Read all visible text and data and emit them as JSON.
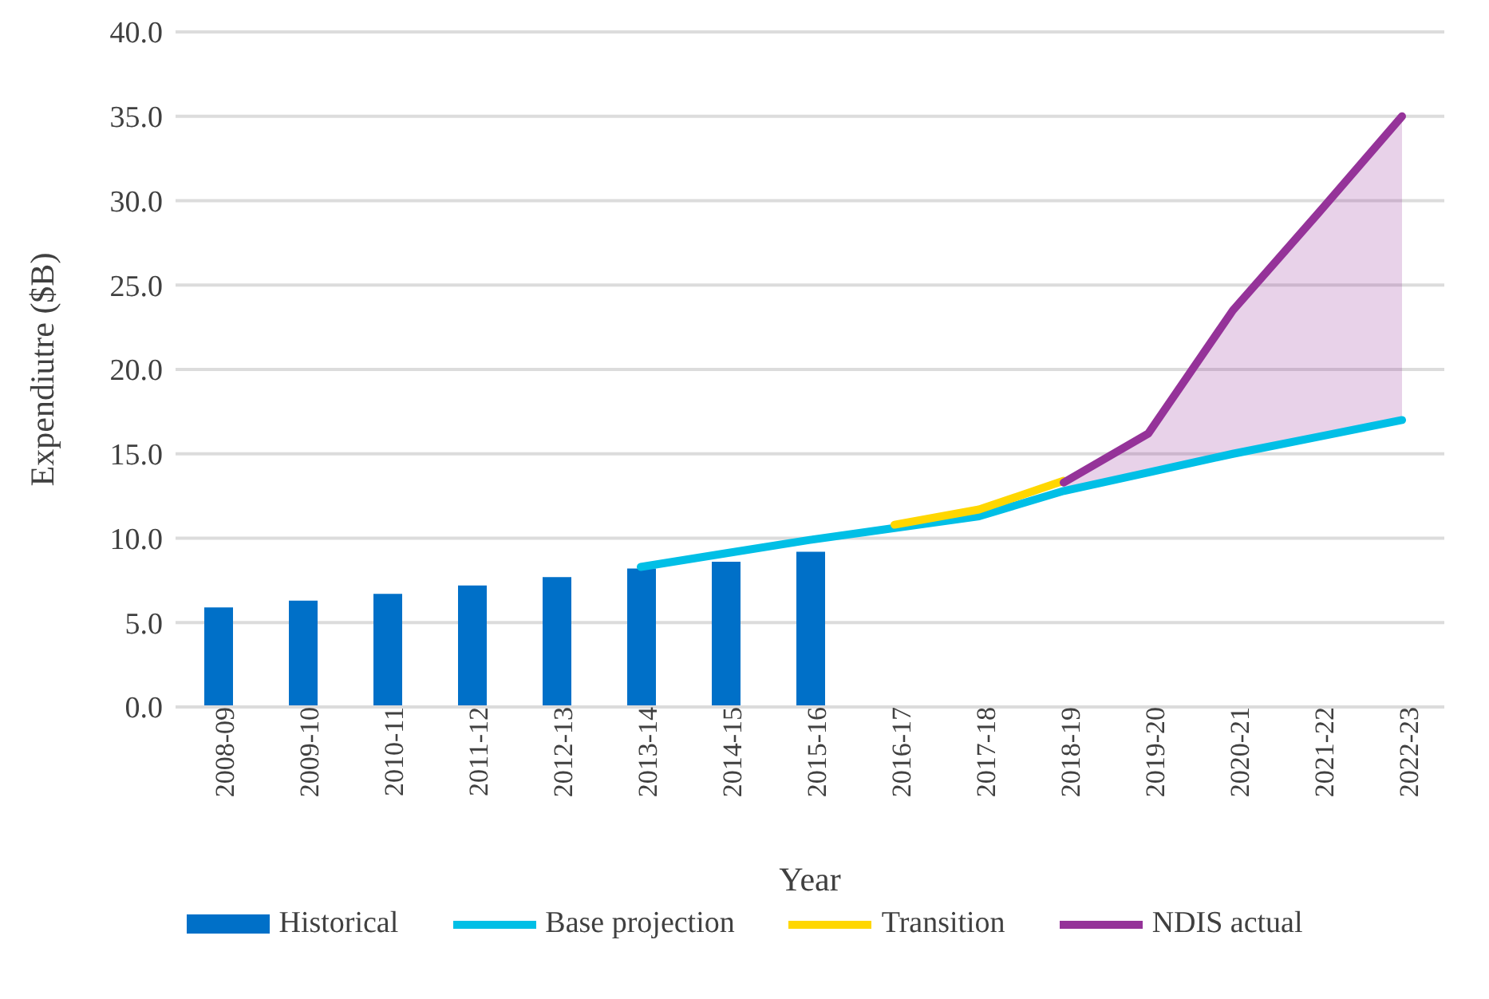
{
  "chart_data": {
    "type": "bar",
    "xlabel": "Year",
    "ylabel": "Expendiutre ($B)",
    "categories": [
      "2008-09",
      "2009-10",
      "2010-11",
      "2011-12",
      "2012-13",
      "2013-14",
      "2014-15",
      "2015-16",
      "2016-17",
      "2017-18",
      "2018-19",
      "2019-20",
      "2020-21",
      "2021-22",
      "2022-23"
    ],
    "series": [
      {
        "name": "Historical",
        "color": "#0070c8",
        "values": [
          5.9,
          6.3,
          6.7,
          7.2,
          7.7,
          8.2,
          8.6,
          9.2,
          null,
          null,
          null,
          null,
          null,
          null,
          null
        ]
      },
      {
        "name": "Base projection",
        "type": "line",
        "color": "#00bfe6",
        "values": [
          null,
          null,
          null,
          null,
          null,
          8.3,
          9.1,
          9.9,
          10.6,
          11.3,
          12.8,
          13.9,
          15.0,
          16.0,
          17.0
        ]
      },
      {
        "name": "Transition",
        "type": "line",
        "color": "#ffd700",
        "values": [
          null,
          null,
          null,
          null,
          null,
          null,
          null,
          null,
          10.8,
          11.7,
          13.4,
          null,
          null,
          null,
          null
        ]
      },
      {
        "name": "NDIS actual",
        "type": "line",
        "color": "#953399",
        "values": [
          null,
          null,
          null,
          null,
          null,
          null,
          null,
          null,
          null,
          null,
          13.3,
          16.2,
          23.5,
          29.2,
          35.0
        ],
        "lower": [
          null,
          null,
          null,
          null,
          null,
          null,
          null,
          null,
          null,
          null,
          12.8,
          13.9,
          15.0,
          16.0,
          17.0
        ],
        "upper": [
          null,
          null,
          null,
          null,
          null,
          null,
          null,
          null,
          null,
          null,
          13.3,
          16.2,
          23.5,
          29.2,
          35.0
        ]
      }
    ],
    "ylim": [
      0,
      40
    ],
    "yticks": [
      {
        "value": 0,
        "label": "0.0"
      },
      {
        "value": 5,
        "label": "5.0"
      },
      {
        "value": 10,
        "label": "10.0"
      },
      {
        "value": 15,
        "label": "15.0"
      },
      {
        "value": 20,
        "label": "20.0"
      },
      {
        "value": 25,
        "label": "25.0"
      },
      {
        "value": 30,
        "label": "30.0"
      },
      {
        "value": 35,
        "label": "35.0"
      },
      {
        "value": 40,
        "label": "40.0"
      }
    ],
    "grid": "y",
    "legend": "bottom",
    "marker": "none",
    "line_style": "solid"
  }
}
